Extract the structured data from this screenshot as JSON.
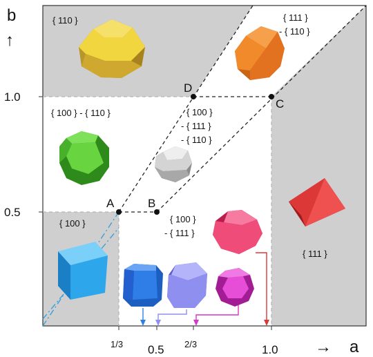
{
  "axes": {
    "x": {
      "name": "a",
      "arrow": "→",
      "ticks": [
        "1/3",
        "0.5",
        "2/3",
        "1.0"
      ]
    },
    "y": {
      "name": "b",
      "arrow": "↑",
      "ticks": [
        "0.5",
        "1.0"
      ]
    }
  },
  "points": [
    "A",
    "B",
    "C",
    "D"
  ],
  "regions": {
    "r110": [
      "{ 110 }"
    ],
    "r111_110": [
      "{ 111 }",
      "- { 110 }"
    ],
    "r100_110": [
      "{ 100 } - { 110 }"
    ],
    "r100_111_110": [
      "{ 100 }",
      "- { 111 }",
      "- { 110 }"
    ],
    "r100": [
      "{ 100 }"
    ],
    "r100_111": [
      "{ 100 }",
      "- { 111 }"
    ],
    "r111": [
      "{ 111 }"
    ]
  },
  "colors": {
    "gray_region": "#cfcfcf",
    "yellow": "#e6c23a",
    "orange": "#f08a2a",
    "green": "#55c234",
    "silver": "#c8c8c8",
    "red": "#dc3838",
    "cube_blue": "#2ea6ec",
    "blue": "#2f7ee8",
    "lavender": "#8f8ff0",
    "pink": "#f04c7a",
    "magenta": "#d935c8",
    "cyan_dash": "#3b9fd8"
  }
}
